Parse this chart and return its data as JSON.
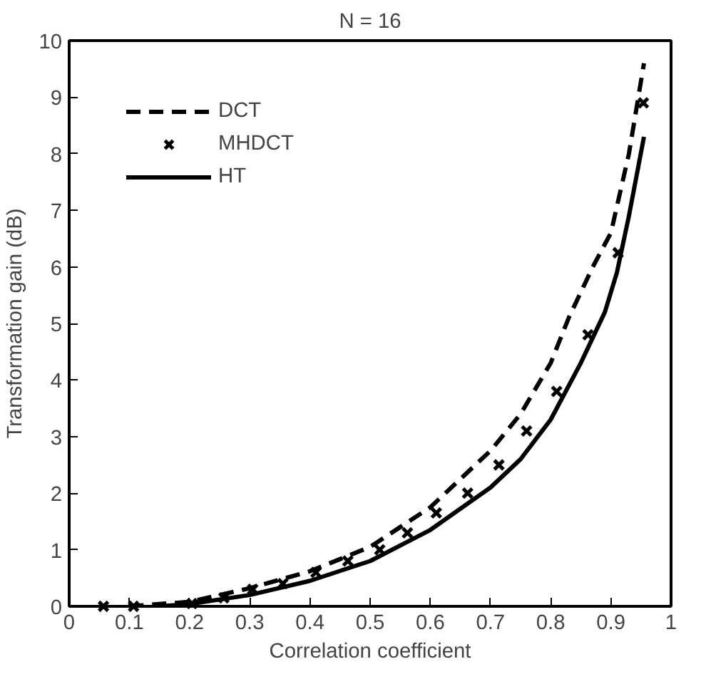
{
  "chart_data": {
    "type": "line",
    "title": "N = 16",
    "xlabel": "Correlation coefficient",
    "ylabel": "Transformation gain (dB)",
    "xlim": [
      0,
      1
    ],
    "ylim": [
      0,
      10
    ],
    "xticks": [
      0,
      0.1,
      0.2,
      0.3,
      0.4,
      0.5,
      0.6,
      0.7,
      0.8,
      0.9,
      1
    ],
    "yticks": [
      0,
      1,
      2,
      3,
      4,
      5,
      6,
      7,
      8,
      9,
      10
    ],
    "grid": false,
    "legend": "top left",
    "series": [
      {
        "name": "DCT",
        "color": "#000000",
        "line_style": "dashed",
        "marker": "none",
        "x": [
          0.1,
          0.2,
          0.3,
          0.4,
          0.5,
          0.6,
          0.7,
          0.75,
          0.8,
          0.83,
          0.87,
          0.9,
          0.93,
          0.955
        ],
        "values": [
          0.0,
          0.08,
          0.32,
          0.62,
          1.05,
          1.75,
          2.75,
          3.4,
          4.3,
          5.1,
          6.0,
          6.6,
          8.0,
          9.6
        ]
      },
      {
        "name": "MHDCT",
        "color": "#000000",
        "type": "scatter",
        "marker": "cross",
        "x": [
          0.057,
          0.107,
          0.204,
          0.257,
          0.305,
          0.355,
          0.41,
          0.463,
          0.516,
          0.562,
          0.61,
          0.662,
          0.714,
          0.76,
          0.81,
          0.862,
          0.912,
          0.954
        ],
        "values": [
          0,
          0,
          0.05,
          0.15,
          0.3,
          0.4,
          0.6,
          0.8,
          1.0,
          1.3,
          1.65,
          2.0,
          2.5,
          3.1,
          3.8,
          4.8,
          6.25,
          8.9
        ]
      },
      {
        "name": "HT",
        "color": "#000000",
        "line_style": "solid",
        "marker": "none",
        "x": [
          0.15,
          0.2,
          0.3,
          0.4,
          0.5,
          0.6,
          0.7,
          0.75,
          0.8,
          0.85,
          0.89,
          0.91,
          0.93,
          0.955
        ],
        "values": [
          0.0,
          0.04,
          0.2,
          0.45,
          0.8,
          1.35,
          2.1,
          2.6,
          3.3,
          4.3,
          5.2,
          5.9,
          6.9,
          8.3
        ]
      }
    ]
  }
}
